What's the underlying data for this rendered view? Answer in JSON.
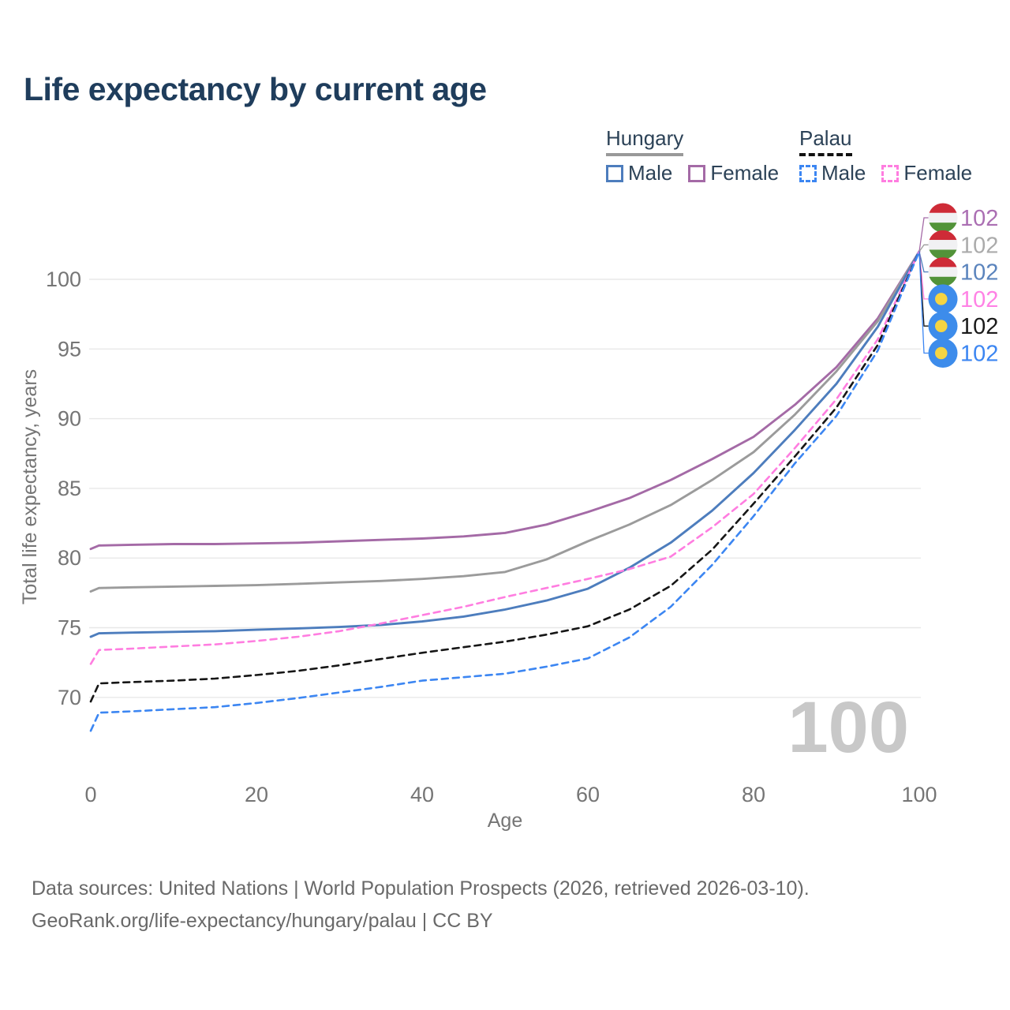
{
  "title": "Life expectancy by current age",
  "legend": {
    "groups": [
      {
        "name": "Hungary",
        "line_style": "solid",
        "items": [
          {
            "label": "Male",
            "color": "#4d7dbd",
            "box_style": "solid"
          },
          {
            "label": "Female",
            "color": "#a46aa6",
            "box_style": "solid"
          }
        ]
      },
      {
        "name": "Palau",
        "line_style": "dashed",
        "items": [
          {
            "label": "Male",
            "color": "#3c86f2",
            "box_style": "dashed"
          },
          {
            "label": "Female",
            "color": "#ff7de0",
            "box_style": "dashed"
          }
        ]
      }
    ]
  },
  "chart_data": {
    "type": "line",
    "title": "Life expectancy by current age",
    "xlabel": "Age",
    "ylabel": "Total life expectancy, years",
    "xlim": [
      0,
      100
    ],
    "ylim": [
      66,
      102.5
    ],
    "x_ticks": [
      0,
      20,
      40,
      60,
      80,
      100
    ],
    "y_ticks": [
      70,
      75,
      80,
      85,
      90,
      95,
      100
    ],
    "grid": "horizontal-only",
    "legend_position": "top-right",
    "x": [
      0,
      1,
      5,
      10,
      15,
      20,
      25,
      30,
      35,
      40,
      45,
      50,
      55,
      60,
      65,
      70,
      75,
      80,
      85,
      90,
      95,
      100
    ],
    "series": [
      {
        "id": "hungary-female",
        "name": "Hungary Female",
        "color": "#a46aa6",
        "dash": false,
        "values": [
          80.65,
          80.9,
          80.95,
          81.0,
          81.0,
          81.05,
          81.1,
          81.2,
          81.3,
          81.4,
          81.55,
          81.8,
          82.4,
          83.3,
          84.3,
          85.6,
          87.1,
          88.7,
          91.0,
          93.7,
          97.2,
          102
        ]
      },
      {
        "id": "hungary-total",
        "name": "Hungary",
        "color": "#9b9b9b",
        "dash": false,
        "values": [
          77.6,
          77.85,
          77.9,
          77.95,
          78.0,
          78.05,
          78.15,
          78.25,
          78.35,
          78.5,
          78.7,
          79.0,
          79.9,
          81.2,
          82.4,
          83.8,
          85.6,
          87.6,
          90.3,
          93.4,
          97.0,
          102
        ]
      },
      {
        "id": "hungary-male",
        "name": "Hungary Male",
        "color": "#4d7dbd",
        "dash": false,
        "values": [
          74.35,
          74.6,
          74.65,
          74.7,
          74.75,
          74.85,
          74.95,
          75.05,
          75.2,
          75.45,
          75.8,
          76.3,
          76.95,
          77.8,
          79.3,
          81.1,
          83.4,
          86.1,
          89.2,
          92.5,
          96.6,
          102
        ]
      },
      {
        "id": "palau-female",
        "name": "Palau Female",
        "color": "#ff7de0",
        "dash": true,
        "values": [
          72.4,
          73.4,
          73.5,
          73.65,
          73.8,
          74.05,
          74.35,
          74.75,
          75.3,
          75.9,
          76.5,
          77.2,
          77.85,
          78.5,
          79.2,
          80.1,
          82.2,
          84.6,
          87.9,
          91.4,
          95.7,
          102
        ]
      },
      {
        "id": "palau-total",
        "name": "Palau",
        "color": "#161616",
        "dash": true,
        "values": [
          69.7,
          71.0,
          71.1,
          71.2,
          71.35,
          71.6,
          71.9,
          72.3,
          72.75,
          73.2,
          73.6,
          74.0,
          74.5,
          75.1,
          76.3,
          78.0,
          80.6,
          83.9,
          87.3,
          90.8,
          95.3,
          102
        ]
      },
      {
        "id": "palau-male",
        "name": "Palau Male",
        "color": "#3c86f2",
        "dash": true,
        "values": [
          67.6,
          68.9,
          69.0,
          69.15,
          69.3,
          69.6,
          69.95,
          70.35,
          70.75,
          71.2,
          71.45,
          71.7,
          72.2,
          72.8,
          74.3,
          76.5,
          79.5,
          83.0,
          86.8,
          90.2,
          94.9,
          102
        ]
      }
    ]
  },
  "end_labels": [
    {
      "series": "hungary-female",
      "flag": "hungary",
      "value": "102",
      "text_color": "#ab6fb3",
      "leader_color": "#a46aa6"
    },
    {
      "series": "hungary-total",
      "flag": "hungary",
      "value": "102",
      "text_color": "#ababab",
      "leader_color": "#9b9b9b"
    },
    {
      "series": "hungary-male",
      "flag": "hungary",
      "value": "102",
      "text_color": "#5b84bd",
      "leader_color": "#4d7dbd"
    },
    {
      "series": "palau-female",
      "flag": "palau",
      "value": "102",
      "text_color": "#ff82e5",
      "leader_color": "#ff7de0"
    },
    {
      "series": "palau-total",
      "flag": "palau",
      "value": "102",
      "text_color": "#1a1a1a",
      "leader_color": "#161616"
    },
    {
      "series": "palau-male",
      "flag": "palau",
      "value": "102",
      "text_color": "#3c86f2",
      "leader_color": "#3c86f2"
    }
  ],
  "flag_colors": {
    "hungary": {
      "top": "#ce2b37",
      "middle": "#f1f1f3",
      "bottom": "#529339"
    },
    "palau": {
      "field": "#3d8ceb",
      "disc": "#f5d442"
    }
  },
  "watermark": "100",
  "footer": {
    "line1": "Data sources: United Nations | World Population Prospects (2026, retrieved 2026-03-10).",
    "line2": "GeoRank.org/life-expectancy/hungary/palau | CC BY"
  }
}
